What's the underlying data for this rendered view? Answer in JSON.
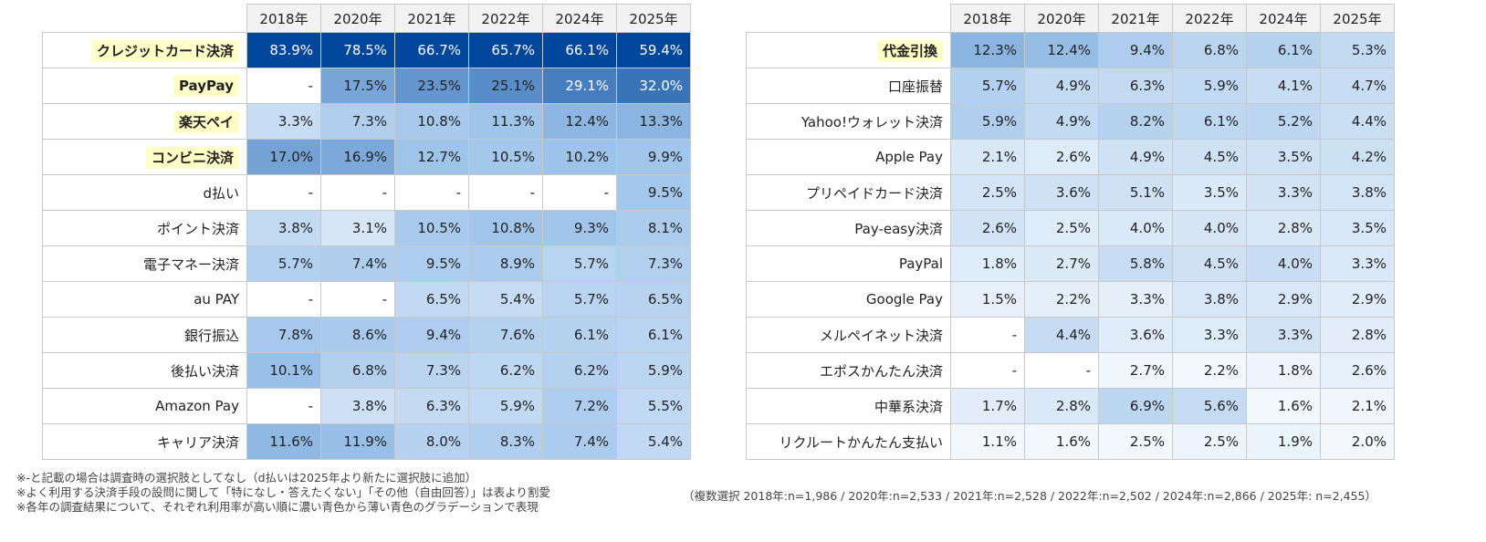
{
  "chart_data": [
    {
      "type": "heatmap",
      "categories": [
        "2018年",
        "2020年",
        "2021年",
        "2022年",
        "2024年",
        "2025年"
      ],
      "rows": [
        {
          "label": "クレジットカード決済",
          "highlight": true,
          "values": [
            "83.9%",
            "78.5%",
            "66.7%",
            "65.7%",
            "66.1%",
            "59.4%"
          ]
        },
        {
          "label": "PayPay",
          "highlight": true,
          "values": [
            "-",
            "17.5%",
            "23.5%",
            "25.1%",
            "29.1%",
            "32.0%"
          ]
        },
        {
          "label": "楽天ペイ",
          "highlight": true,
          "values": [
            "3.3%",
            "7.3%",
            "10.8%",
            "11.3%",
            "12.4%",
            "13.3%"
          ]
        },
        {
          "label": "コンビニ決済",
          "highlight": true,
          "values": [
            "17.0%",
            "16.9%",
            "12.7%",
            "10.5%",
            "10.2%",
            "9.9%"
          ]
        },
        {
          "label": "d払い",
          "highlight": false,
          "values": [
            "-",
            "-",
            "-",
            "-",
            "-",
            "9.5%"
          ]
        },
        {
          "label": "ポイント決済",
          "highlight": false,
          "values": [
            "3.8%",
            "3.1%",
            "10.5%",
            "10.8%",
            "9.3%",
            "8.1%"
          ]
        },
        {
          "label": "電子マネー決済",
          "highlight": false,
          "values": [
            "5.7%",
            "7.4%",
            "9.5%",
            "8.9%",
            "5.7%",
            "7.3%"
          ]
        },
        {
          "label": "au PAY",
          "highlight": false,
          "values": [
            "-",
            "-",
            "6.5%",
            "5.4%",
            "5.7%",
            "6.5%"
          ]
        },
        {
          "label": "銀行振込",
          "highlight": false,
          "values": [
            "7.8%",
            "8.6%",
            "9.4%",
            "7.6%",
            "6.1%",
            "6.1%"
          ]
        },
        {
          "label": "後払い決済",
          "highlight": false,
          "values": [
            "10.1%",
            "6.8%",
            "7.3%",
            "6.2%",
            "6.2%",
            "5.9%"
          ]
        },
        {
          "label": "Amazon Pay",
          "highlight": false,
          "values": [
            "-",
            "3.8%",
            "6.3%",
            "5.9%",
            "7.2%",
            "5.5%"
          ]
        },
        {
          "label": "キャリア決済",
          "highlight": false,
          "values": [
            "11.6%",
            "11.9%",
            "8.0%",
            "8.3%",
            "7.4%",
            "5.4%"
          ]
        }
      ]
    },
    {
      "type": "heatmap",
      "categories": [
        "2018年",
        "2020年",
        "2021年",
        "2022年",
        "2024年",
        "2025年"
      ],
      "rows": [
        {
          "label": "代金引換",
          "highlight": true,
          "values": [
            "12.3%",
            "12.4%",
            "9.4%",
            "6.8%",
            "6.1%",
            "5.3%"
          ]
        },
        {
          "label": "口座振替",
          "highlight": false,
          "values": [
            "5.7%",
            "4.9%",
            "6.3%",
            "5.9%",
            "4.1%",
            "4.7%"
          ]
        },
        {
          "label": "Yahoo!ウォレット決済",
          "highlight": false,
          "values": [
            "5.9%",
            "4.9%",
            "8.2%",
            "6.1%",
            "5.2%",
            "4.4%"
          ]
        },
        {
          "label": "Apple Pay",
          "highlight": false,
          "values": [
            "2.1%",
            "2.6%",
            "4.9%",
            "4.5%",
            "3.5%",
            "4.2%"
          ]
        },
        {
          "label": "プリペイドカード決済",
          "highlight": false,
          "values": [
            "2.5%",
            "3.6%",
            "5.1%",
            "3.5%",
            "3.3%",
            "3.8%"
          ]
        },
        {
          "label": "Pay-easy決済",
          "highlight": false,
          "values": [
            "2.6%",
            "2.5%",
            "4.0%",
            "4.0%",
            "2.8%",
            "3.5%"
          ]
        },
        {
          "label": "PayPal",
          "highlight": false,
          "values": [
            "1.8%",
            "2.7%",
            "5.8%",
            "4.5%",
            "4.0%",
            "3.3%"
          ]
        },
        {
          "label": "Google Pay",
          "highlight": false,
          "values": [
            "1.5%",
            "2.2%",
            "3.3%",
            "3.8%",
            "2.9%",
            "2.9%"
          ]
        },
        {
          "label": "メルペイネット決済",
          "highlight": false,
          "values": [
            "-",
            "4.4%",
            "3.6%",
            "3.3%",
            "3.3%",
            "2.8%"
          ]
        },
        {
          "label": "エポスかんたん決済",
          "highlight": false,
          "values": [
            "-",
            "-",
            "2.7%",
            "2.2%",
            "1.8%",
            "2.6%"
          ]
        },
        {
          "label": "中華系決済",
          "highlight": false,
          "values": [
            "1.7%",
            "2.8%",
            "6.9%",
            "5.6%",
            "1.6%",
            "2.1%"
          ]
        },
        {
          "label": "リクルートかんたん支払い",
          "highlight": false,
          "values": [
            "1.1%",
            "1.6%",
            "2.5%",
            "2.5%",
            "1.9%",
            "2.0%"
          ]
        }
      ]
    }
  ],
  "colors": {
    "low": "#f3f8fd",
    "mid": "#9dc3ea",
    "high": "#00469c",
    "header": "#f2f2f2",
    "highlight": "#ffffc8"
  },
  "notes": [
    "※-と記載の場合は調査時の選択肢としてなし（d払いは2025年より新たに選択肢に追加）",
    "※よく利用する決済手段の設問に関して「特になし・答えたくない」「その他（自由回答）」は表より割愛",
    "※各年の調査結果について、それぞれ利用率が高い順に濃い青色から薄い青色のグラデーションで表現"
  ],
  "sample_note": "（複数選択 2018年:n=1,986 / 2020年:n=2,533 / 2021年:n=2,528 / 2022年:n=2,502 / 2024年:n=2,866 / 2025年: n=2,455）"
}
